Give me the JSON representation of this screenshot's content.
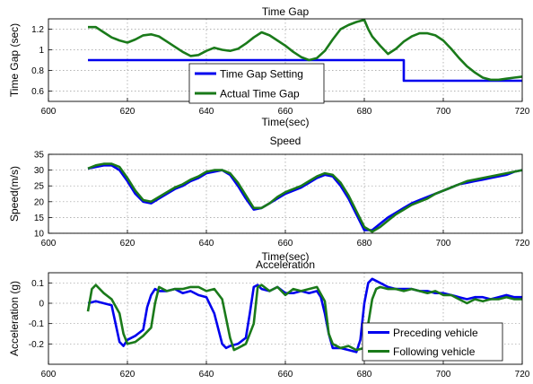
{
  "chart_data": [
    {
      "type": "line",
      "title": "Time Gap",
      "xlabel": "Time(sec)",
      "ylabel": "Time Gap (sec)",
      "xlim": [
        600,
        720
      ],
      "ylim": [
        0.5,
        1.3
      ],
      "xticks": [
        600,
        620,
        640,
        660,
        680,
        700,
        720
      ],
      "yticks": [
        0.6,
        0.8,
        1,
        1.2
      ],
      "ytick_labels": [
        "0.6",
        "0.8",
        "1",
        "1.2"
      ],
      "grid": true,
      "legend_position": "bottom-center",
      "series": [
        {
          "name": "Time Gap Setting",
          "color": "#0000ee",
          "x": [
            610,
            690,
            690,
            720
          ],
          "y": [
            0.9,
            0.9,
            0.7,
            0.7
          ]
        },
        {
          "name": "Actual Time Gap",
          "color": "#1a7a1a",
          "x": [
            610,
            612,
            614,
            616,
            618,
            620,
            622,
            624,
            626,
            628,
            630,
            632,
            634,
            636,
            638,
            640,
            642,
            644,
            646,
            648,
            650,
            652,
            654,
            656,
            658,
            660,
            662,
            664,
            666,
            668,
            670,
            672,
            674,
            676,
            678,
            680,
            681,
            682,
            684,
            686,
            688,
            690,
            692,
            694,
            696,
            698,
            700,
            702,
            704,
            706,
            708,
            710,
            712,
            714,
            716,
            718,
            720
          ],
          "y": [
            1.22,
            1.22,
            1.17,
            1.12,
            1.09,
            1.07,
            1.1,
            1.14,
            1.15,
            1.13,
            1.08,
            1.03,
            0.98,
            0.94,
            0.95,
            0.99,
            1.02,
            1.0,
            0.99,
            1.01,
            1.06,
            1.12,
            1.17,
            1.14,
            1.09,
            1.04,
            0.98,
            0.93,
            0.9,
            0.92,
            0.99,
            1.1,
            1.2,
            1.24,
            1.27,
            1.29,
            1.2,
            1.13,
            1.04,
            0.96,
            1.01,
            1.08,
            1.13,
            1.16,
            1.16,
            1.14,
            1.09,
            1.01,
            0.92,
            0.84,
            0.78,
            0.73,
            0.71,
            0.71,
            0.72,
            0.73,
            0.74
          ]
        }
      ]
    },
    {
      "type": "line",
      "title": "Speed",
      "xlabel": "Time(sec)",
      "ylabel": "Speed(m/s)",
      "xlim": [
        600,
        720
      ],
      "ylim": [
        10,
        35
      ],
      "xticks": [
        600,
        620,
        640,
        660,
        680,
        700,
        720
      ],
      "yticks": [
        10,
        15,
        20,
        25,
        30,
        35
      ],
      "ytick_labels": [
        "10",
        "15",
        "20",
        "25",
        "30",
        "35"
      ],
      "grid": true,
      "series": [
        {
          "name": "Preceding vehicle",
          "color": "#0000ee",
          "x": [
            610,
            612,
            614,
            616,
            618,
            620,
            622,
            624,
            626,
            628,
            630,
            632,
            634,
            636,
            638,
            640,
            642,
            644,
            646,
            648,
            650,
            652,
            654,
            656,
            658,
            660,
            662,
            664,
            666,
            668,
            670,
            672,
            674,
            676,
            678,
            680,
            682,
            684,
            686,
            688,
            690,
            692,
            694,
            696,
            698,
            700,
            702,
            704,
            706,
            708,
            710,
            712,
            714,
            716,
            718,
            720
          ],
          "y": [
            30.5,
            31.0,
            31.5,
            31.5,
            30.0,
            26.5,
            22.5,
            20.0,
            19.5,
            21.0,
            22.5,
            24.0,
            25.0,
            26.5,
            27.5,
            29.0,
            29.5,
            30.0,
            28.5,
            25.0,
            21.0,
            17.5,
            18.0,
            19.5,
            21.0,
            22.5,
            23.5,
            24.5,
            26.0,
            27.5,
            28.5,
            28.0,
            25.0,
            21.0,
            16.0,
            11.0,
            11.0,
            13.0,
            15.0,
            16.5,
            18.0,
            19.5,
            20.5,
            21.5,
            22.5,
            23.5,
            24.5,
            25.5,
            26.0,
            26.5,
            27.0,
            27.5,
            28.0,
            28.5,
            29.5,
            30.0
          ]
        },
        {
          "name": "Following vehicle",
          "color": "#1a7a1a",
          "x": [
            610,
            612,
            614,
            616,
            618,
            620,
            622,
            624,
            626,
            628,
            630,
            632,
            634,
            636,
            638,
            640,
            642,
            644,
            646,
            648,
            650,
            652,
            654,
            656,
            658,
            660,
            662,
            664,
            666,
            668,
            670,
            672,
            674,
            676,
            678,
            680,
            682,
            684,
            686,
            688,
            690,
            692,
            694,
            696,
            698,
            700,
            702,
            704,
            706,
            708,
            710,
            712,
            714,
            716,
            718,
            720
          ],
          "y": [
            30.5,
            31.5,
            32.0,
            32.0,
            31.0,
            27.5,
            23.5,
            20.5,
            20.0,
            21.5,
            23.0,
            24.5,
            25.5,
            27.0,
            28.0,
            29.5,
            30.0,
            30.0,
            29.0,
            26.0,
            22.0,
            18.0,
            18.0,
            19.5,
            21.5,
            23.0,
            24.0,
            25.0,
            26.5,
            28.0,
            29.0,
            28.5,
            26.0,
            22.0,
            17.0,
            12.0,
            10.5,
            12.0,
            14.0,
            16.0,
            17.5,
            19.0,
            20.0,
            21.0,
            22.5,
            23.5,
            24.5,
            25.5,
            26.5,
            27.0,
            27.5,
            28.0,
            28.5,
            29.0,
            29.5,
            30.0
          ]
        }
      ]
    },
    {
      "type": "line",
      "title": "Acceleration",
      "xlabel": "",
      "ylabel": "Acceleration (g)",
      "xlim": [
        600,
        720
      ],
      "ylim": [
        -0.3,
        0.15
      ],
      "xticks": [
        600,
        620,
        640,
        660,
        680,
        700,
        720
      ],
      "yticks": [
        -0.2,
        -0.1,
        0,
        0.1
      ],
      "ytick_labels": [
        "-0.2",
        "-0.1",
        "0",
        "0.1"
      ],
      "grid": true,
      "legend_position": "bottom-right",
      "series": [
        {
          "name": "Preceding vehicle",
          "color": "#0000ee",
          "x": [
            610,
            612,
            614,
            616,
            617,
            618,
            619,
            620,
            622,
            624,
            625,
            626,
            627,
            628,
            630,
            632,
            634,
            636,
            638,
            640,
            642,
            644,
            645,
            646,
            648,
            650,
            651,
            652,
            653,
            654,
            656,
            658,
            660,
            662,
            664,
            666,
            668,
            669,
            670,
            671,
            672,
            674,
            676,
            678,
            679,
            680,
            681,
            682,
            684,
            686,
            688,
            690,
            692,
            694,
            696,
            698,
            700,
            702,
            704,
            706,
            708,
            710,
            712,
            714,
            716,
            718,
            720
          ],
          "y": [
            0.0,
            0.01,
            0.0,
            -0.01,
            -0.1,
            -0.19,
            -0.21,
            -0.18,
            -0.16,
            -0.13,
            -0.02,
            0.04,
            0.07,
            0.06,
            0.06,
            0.07,
            0.05,
            0.06,
            0.04,
            0.03,
            -0.05,
            -0.2,
            -0.22,
            -0.21,
            -0.2,
            -0.17,
            -0.05,
            0.08,
            0.09,
            0.07,
            0.06,
            0.08,
            0.05,
            0.05,
            0.06,
            0.05,
            0.06,
            0.03,
            -0.05,
            -0.15,
            -0.22,
            -0.22,
            -0.23,
            -0.24,
            -0.18,
            0.0,
            0.1,
            0.12,
            0.1,
            0.08,
            0.07,
            0.07,
            0.07,
            0.06,
            0.06,
            0.05,
            0.05,
            0.04,
            0.03,
            0.02,
            0.03,
            0.03,
            0.02,
            0.03,
            0.04,
            0.03,
            0.03
          ]
        },
        {
          "name": "Following vehicle",
          "color": "#1a7a1a",
          "x": [
            610,
            611,
            612,
            614,
            616,
            618,
            619,
            620,
            622,
            624,
            626,
            627,
            628,
            630,
            632,
            634,
            636,
            638,
            640,
            642,
            644,
            646,
            647,
            648,
            650,
            652,
            653,
            654,
            656,
            658,
            660,
            662,
            664,
            666,
            668,
            670,
            671,
            672,
            674,
            676,
            678,
            680,
            681,
            682,
            683,
            684,
            686,
            688,
            690,
            692,
            694,
            696,
            698,
            700,
            702,
            704,
            706,
            708,
            710,
            712,
            714,
            716,
            718,
            720
          ],
          "y": [
            -0.04,
            0.07,
            0.09,
            0.05,
            0.02,
            -0.05,
            -0.15,
            -0.2,
            -0.19,
            -0.16,
            -0.12,
            0.0,
            0.08,
            0.06,
            0.07,
            0.07,
            0.08,
            0.08,
            0.06,
            0.07,
            0.02,
            -0.17,
            -0.23,
            -0.22,
            -0.2,
            -0.1,
            0.08,
            0.09,
            0.06,
            0.08,
            0.04,
            0.07,
            0.06,
            0.07,
            0.08,
            0.01,
            -0.15,
            -0.2,
            -0.22,
            -0.21,
            -0.23,
            -0.22,
            -0.1,
            0.02,
            0.07,
            0.08,
            0.07,
            0.07,
            0.06,
            0.07,
            0.06,
            0.05,
            0.06,
            0.04,
            0.04,
            0.02,
            0.0,
            0.02,
            0.01,
            0.02,
            0.02,
            0.03,
            0.02,
            0.02
          ]
        }
      ]
    }
  ]
}
